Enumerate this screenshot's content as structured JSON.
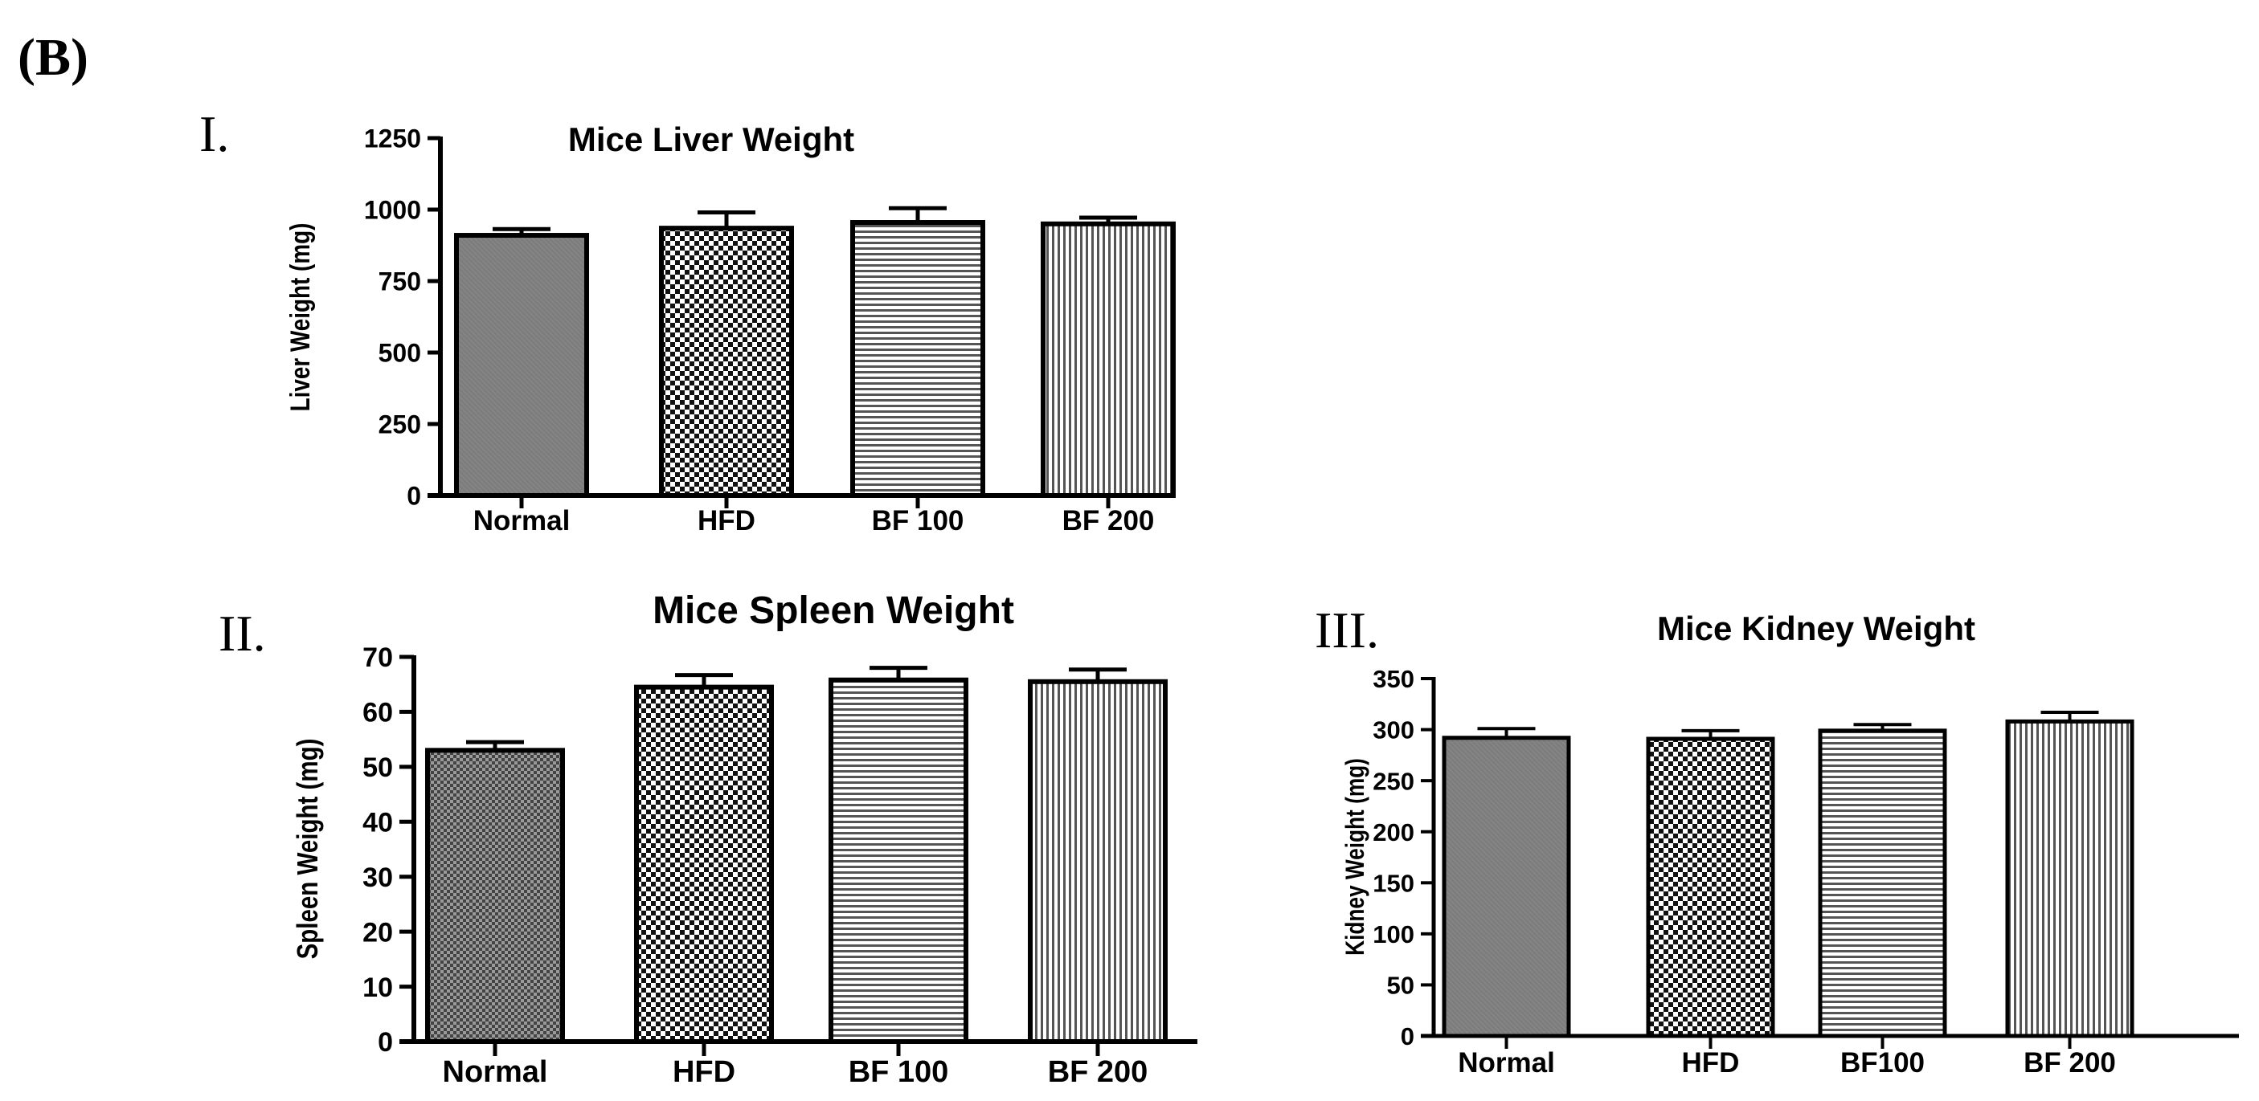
{
  "figure": {
    "panel_label": "(B)",
    "panel_numerals": [
      "I.",
      "II.",
      "III."
    ]
  },
  "chart_data": [
    {
      "type": "bar",
      "title": "Mice Liver Weight",
      "xlabel": "",
      "ylabel": "Liver Weight (mg)",
      "categories": [
        "Normal",
        "HFD",
        "BF100",
        "BF200"
      ],
      "category_labels": [
        "Normal",
        "HFD",
        "BF 100",
        "BF 200"
      ],
      "values": [
        910,
        935,
        955,
        950
      ],
      "errors": [
        22,
        55,
        50,
        22
      ],
      "ylim": [
        0,
        1250
      ],
      "yticks": [
        0,
        250,
        500,
        750,
        1000,
        1250
      ],
      "ytick_labels": [
        "0",
        "250",
        "500",
        "750",
        "1000",
        "1250"
      ],
      "fills": [
        "solid-gray",
        "checker",
        "horizontal-lines",
        "vertical-lines"
      ],
      "grid": false,
      "legend": "none"
    },
    {
      "type": "bar",
      "title": "Mice Spleen Weight",
      "xlabel": "",
      "ylabel": "Spleen Weight (mg)",
      "categories": [
        "Normal",
        "HFD",
        "BF100",
        "BF200"
      ],
      "category_labels": [
        "Normal",
        "HFD",
        "BF 100",
        "BF 200"
      ],
      "values": [
        53,
        64.5,
        65.8,
        65.5
      ],
      "errors": [
        1.5,
        2.2,
        2.2,
        2.2
      ],
      "ylim": [
        0,
        70
      ],
      "yticks": [
        0,
        10,
        20,
        30,
        40,
        50,
        60,
        70
      ],
      "ytick_labels": [
        "0",
        "10",
        "20",
        "30",
        "40",
        "50",
        "60",
        "70"
      ],
      "fills": [
        "checker-fine",
        "checker",
        "horizontal-lines",
        "vertical-lines"
      ],
      "grid": false,
      "legend": "none"
    },
    {
      "type": "bar",
      "title": "Mice Kidney Weight",
      "xlabel": "",
      "ylabel": "Kidney Weight (mg)",
      "categories": [
        "Normal",
        "HFD",
        "BF100",
        "BF200"
      ],
      "category_labels": [
        "Normal",
        "HFD",
        "BF100",
        "BF 200"
      ],
      "values": [
        292,
        291,
        299,
        308
      ],
      "errors": [
        9,
        8,
        6,
        9
      ],
      "ylim": [
        0,
        350
      ],
      "yticks": [
        0,
        50,
        100,
        150,
        200,
        250,
        300,
        350
      ],
      "ytick_labels": [
        "0",
        "50",
        "100",
        "150",
        "200",
        "250",
        "300",
        "350"
      ],
      "fills": [
        "solid-gray",
        "checker",
        "horizontal-lines",
        "vertical-lines"
      ],
      "grid": false,
      "legend": "none"
    }
  ],
  "colors": {
    "bar_fill_solid": "#7d7d7d",
    "stroke": "#000000",
    "background": "#ffffff"
  }
}
